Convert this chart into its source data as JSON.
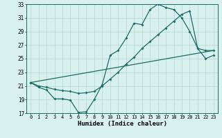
{
  "xlabel": "Humidex (Indice chaleur)",
  "bg_color": "#d8f0ee",
  "grid_color": "#b8dbd8",
  "line_color": "#1a6e64",
  "xlim": [
    -0.5,
    23.5
  ],
  "ylim": [
    17,
    33
  ],
  "xticks": [
    0,
    1,
    2,
    3,
    4,
    5,
    6,
    7,
    8,
    9,
    10,
    11,
    12,
    13,
    14,
    15,
    16,
    17,
    18,
    19,
    20,
    21,
    22,
    23
  ],
  "yticks": [
    17,
    19,
    21,
    23,
    25,
    27,
    29,
    31,
    33
  ],
  "line1_x": [
    0,
    1,
    2,
    3,
    4,
    5,
    6,
    7,
    8,
    9,
    10,
    11,
    12,
    13,
    14,
    15,
    16,
    17,
    18,
    19,
    20,
    21,
    22,
    23
  ],
  "line1_y": [
    21.5,
    20.8,
    20.4,
    19.1,
    19.1,
    18.9,
    17.1,
    17.2,
    19.0,
    21.2,
    25.5,
    26.2,
    28.0,
    30.2,
    30.0,
    32.2,
    33.0,
    32.5,
    32.2,
    31.0,
    29.0,
    26.5,
    25.0,
    25.5
  ],
  "line2_x": [
    0,
    1,
    2,
    3,
    4,
    5,
    6,
    7,
    8,
    9,
    10,
    11,
    12,
    13,
    14,
    15,
    16,
    17,
    18,
    19,
    20,
    21,
    22,
    23
  ],
  "line2_y": [
    21.5,
    21.0,
    20.8,
    20.5,
    20.3,
    20.2,
    19.9,
    20.0,
    20.2,
    21.0,
    22.0,
    23.0,
    24.2,
    25.2,
    26.5,
    27.5,
    28.5,
    29.5,
    30.5,
    31.5,
    32.0,
    26.5,
    26.2,
    26.2
  ],
  "line3_x": [
    0,
    23
  ],
  "line3_y": [
    21.5,
    26.2
  ]
}
